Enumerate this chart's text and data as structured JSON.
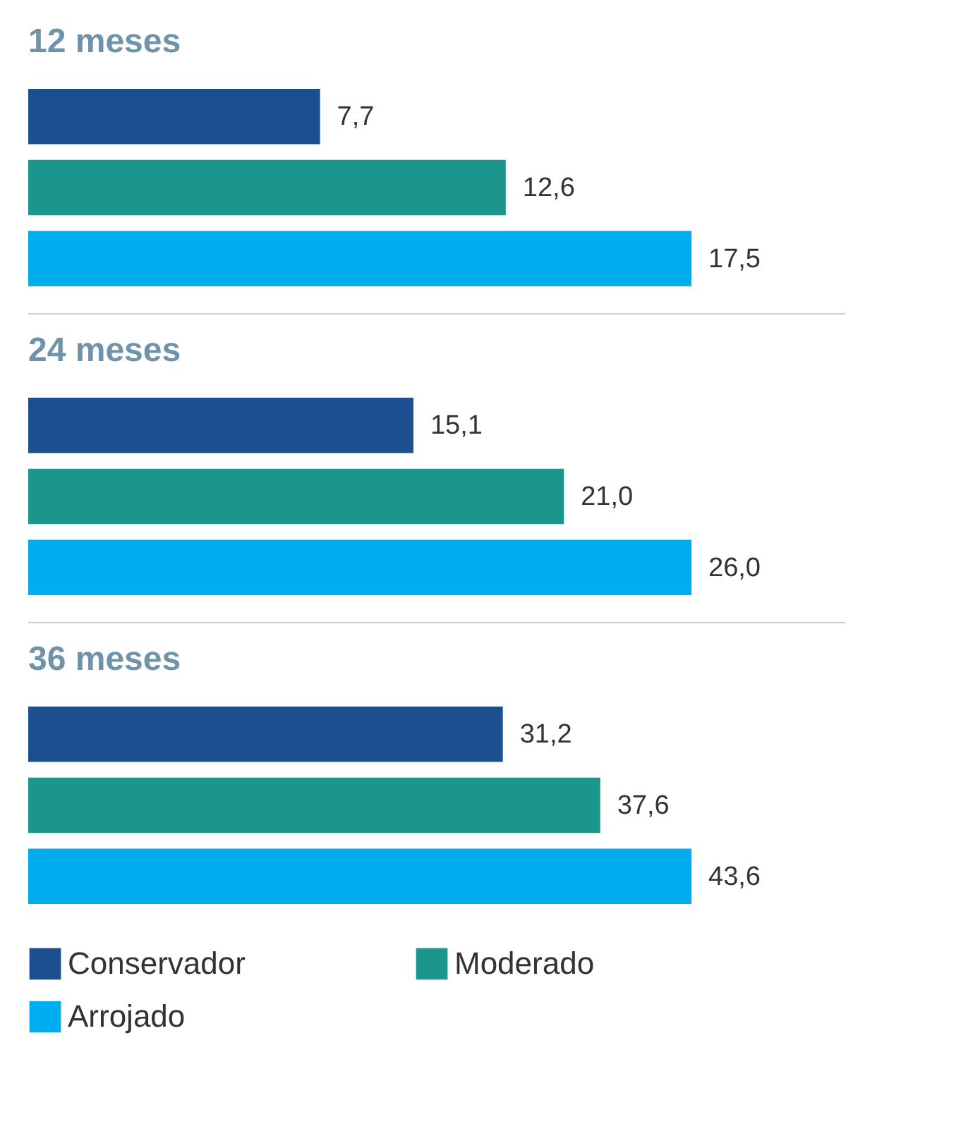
{
  "chart_data": [
    {
      "type": "bar",
      "orientation": "horizontal",
      "title": "12 meses",
      "categories": [
        null
      ],
      "legend": false,
      "series": [
        {
          "color": "#1b4f8f",
          "values": [
            7.7
          ],
          "value_labels": [
            "7,7"
          ]
        },
        {
          "color": "#1a968c",
          "values": [
            12.6
          ],
          "value_labels": [
            "12,6"
          ]
        },
        {
          "color": "#00aeef",
          "values": [
            17.5
          ],
          "value_labels": [
            "17,5"
          ]
        }
      ]
    },
    {
      "type": "bar",
      "orientation": "horizontal",
      "title": "24 meses",
      "categories": [
        null
      ],
      "legend": false,
      "series": [
        {
          "color": "#1b4f8f",
          "values": [
            15.1
          ],
          "value_labels": [
            "15,1"
          ]
        },
        {
          "color": "#1a968c",
          "values": [
            21.0
          ],
          "value_labels": [
            "21,0"
          ]
        },
        {
          "color": "#00aeef",
          "values": [
            26.0
          ],
          "value_labels": [
            "26,0"
          ]
        }
      ]
    },
    {
      "type": "bar",
      "orientation": "horizontal",
      "title": "36 meses",
      "categories": [
        null
      ],
      "legend": "bottom",
      "series": [
        {
          "name": "Conservador",
          "color": "#1b4f8f",
          "values": [
            31.2
          ],
          "value_labels": [
            "31,2"
          ]
        },
        {
          "name": "Moderado",
          "color": "#1a968c",
          "values": [
            37.6
          ],
          "value_labels": [
            "37,6"
          ]
        },
        {
          "name": "Arrojado",
          "color": "#00aeef",
          "values": [
            43.6
          ],
          "value_labels": [
            "43,6"
          ]
        }
      ]
    }
  ]
}
